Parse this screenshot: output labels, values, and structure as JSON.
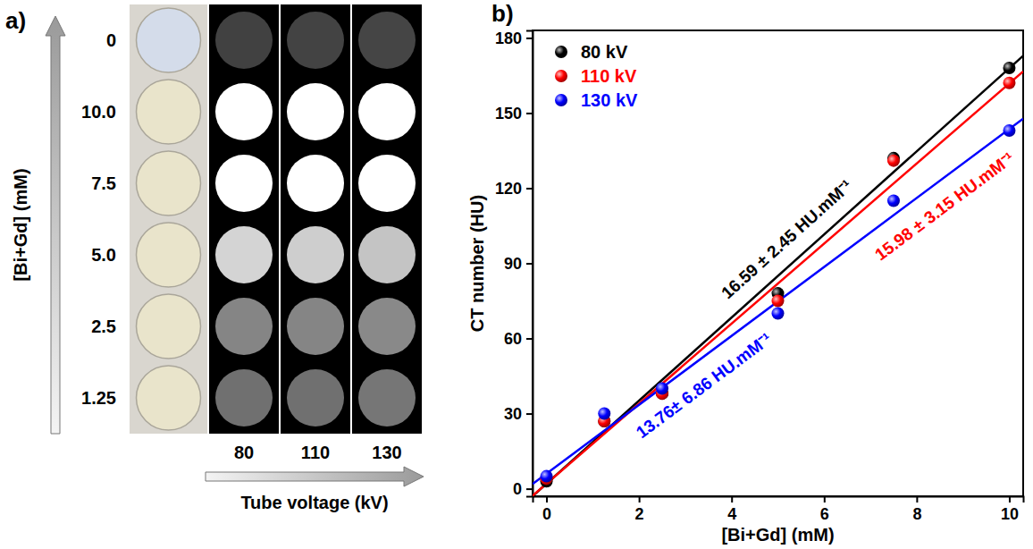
{
  "panel_a": {
    "label": "a)",
    "row_axis_title": "[Bi+Gd] (mM)",
    "rows": [
      0,
      {
        "value": 10,
        "label": "10.0"
      },
      7.5,
      {
        "value": 5,
        "label": "5.0"
      },
      2.5,
      1.25
    ],
    "column_axis_title": "Tube voltage (kV)",
    "columns": [
      80,
      110,
      130
    ]
  },
  "chart_data": {
    "type": "scatter",
    "panel_label": "b)",
    "x_label": "[Bi+Gd] (mM)",
    "y_label": "CT number (HU)",
    "x": [
      0,
      1.25,
      2.5,
      5,
      7.5,
      10
    ],
    "series": [
      {
        "name": "80 kV",
        "color": "#000000",
        "marker": "circle",
        "line_style": "solid",
        "values": [
          3,
          27,
          38,
          78,
          132,
          168
        ],
        "fit_slope": 16.59,
        "fit_slope_error": 2.45,
        "fit_intercept": 2,
        "annotation": "16.59 ± 2.45 HU.mM⁻¹"
      },
      {
        "name": "110 kV",
        "color": "#ff0000",
        "marker": "circle",
        "line_style": "solid",
        "values": [
          4,
          27,
          38,
          75,
          131,
          162
        ],
        "fit_slope": 15.98,
        "fit_slope_error": 3.15,
        "fit_intercept": 2,
        "annotation": "15.98 ± 3.15 HU.mM⁻¹"
      },
      {
        "name": "130 kV",
        "color": "#0000ff",
        "marker": "circle",
        "line_style": "solid",
        "values": [
          5,
          30,
          40,
          70,
          115,
          143
        ],
        "fit_slope": 13.76,
        "fit_slope_error": 6.86,
        "fit_intercept": 6,
        "annotation": "13.76± 6.86 HU.mM⁻¹"
      }
    ],
    "xlim": [
      -0.3,
      10.3
    ],
    "ylim": [
      -3,
      183
    ],
    "xticks": [
      0,
      2,
      4,
      6,
      8,
      10
    ],
    "yticks": [
      0,
      30,
      60,
      90,
      120,
      150,
      180
    ],
    "legend": "top-left",
    "grid": false
  }
}
